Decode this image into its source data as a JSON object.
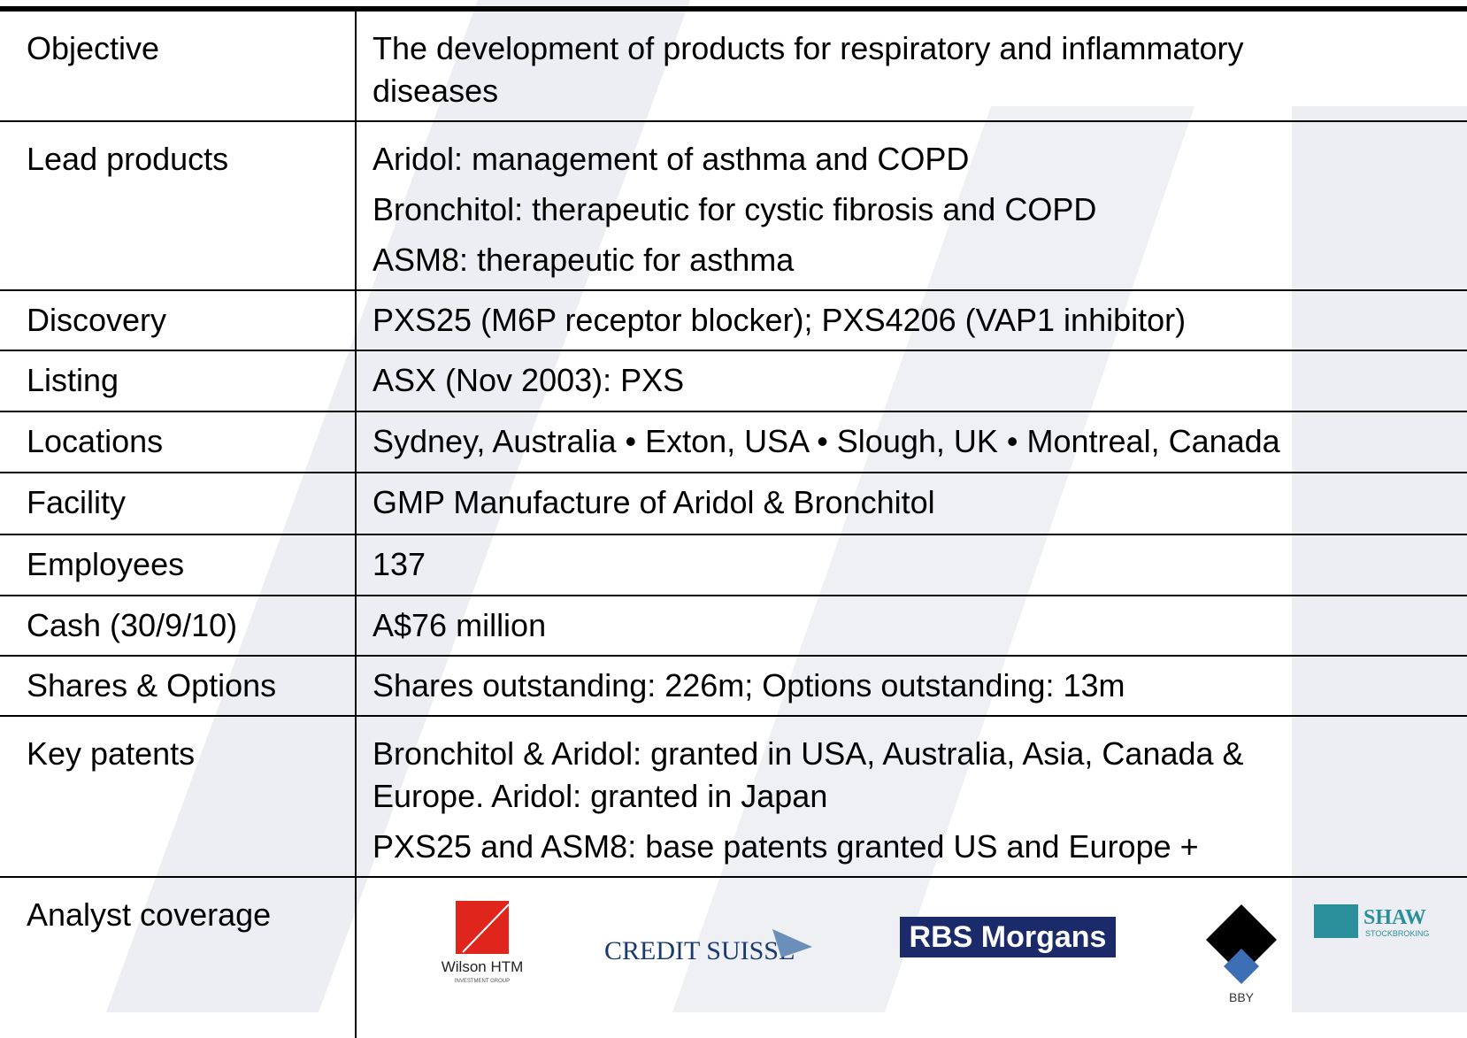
{
  "table": {
    "rows": [
      {
        "label": "Objective",
        "paragraphs": [
          [
            "The development of products for respiratory and inflammatory",
            "diseases"
          ]
        ]
      },
      {
        "label": "Lead products",
        "paragraphs": [
          [
            "Aridol: management of asthma and COPD"
          ],
          [
            "Bronchitol: therapeutic for cystic fibrosis and COPD"
          ],
          [
            "ASM8:  therapeutic for asthma"
          ]
        ]
      },
      {
        "label": "Discovery",
        "paragraphs": [
          [
            "PXS25 (M6P receptor blocker); PXS4206 (VAP1 inhibitor)"
          ]
        ]
      },
      {
        "label": "Listing",
        "paragraphs": [
          [
            "ASX (Nov 2003): PXS"
          ]
        ]
      },
      {
        "label": "Locations",
        "paragraphs": [
          [
            "Sydney, Australia • Exton, USA • Slough, UK • Montreal, Canada"
          ]
        ]
      },
      {
        "label": "Facility",
        "paragraphs": [
          [
            "GMP Manufacture of Aridol & Bronchitol"
          ]
        ]
      },
      {
        "label": "Employees",
        "paragraphs": [
          [
            "137"
          ]
        ]
      },
      {
        "label": "Cash (30/9/10)",
        "paragraphs": [
          [
            "A$76 million"
          ]
        ]
      },
      {
        "label": "Shares & Options",
        "paragraphs": [
          [
            "Shares outstanding: 226m; Options outstanding: 13m"
          ]
        ]
      },
      {
        "label": "Key patents",
        "paragraphs": [
          [
            "Bronchitol & Aridol: granted in USA, Australia, Asia, Canada &",
            "Europe. Aridol: granted in Japan"
          ],
          [
            "PXS25 and ASM8: base patents granted US and Europe +"
          ]
        ]
      }
    ],
    "analyst": {
      "label": "Analyst coverage",
      "logos": {
        "wilson": {
          "name": "Wilson HTM",
          "tag": "INVESTMENT GROUP"
        },
        "credit_suisse": {
          "name": "CREDIT SUISSE"
        },
        "rbs": {
          "name": "RBS Morgans"
        },
        "bby": {
          "name": "BBY"
        },
        "shaw": {
          "name": "SHAW",
          "tag": "STOCKBROKING"
        }
      }
    }
  }
}
